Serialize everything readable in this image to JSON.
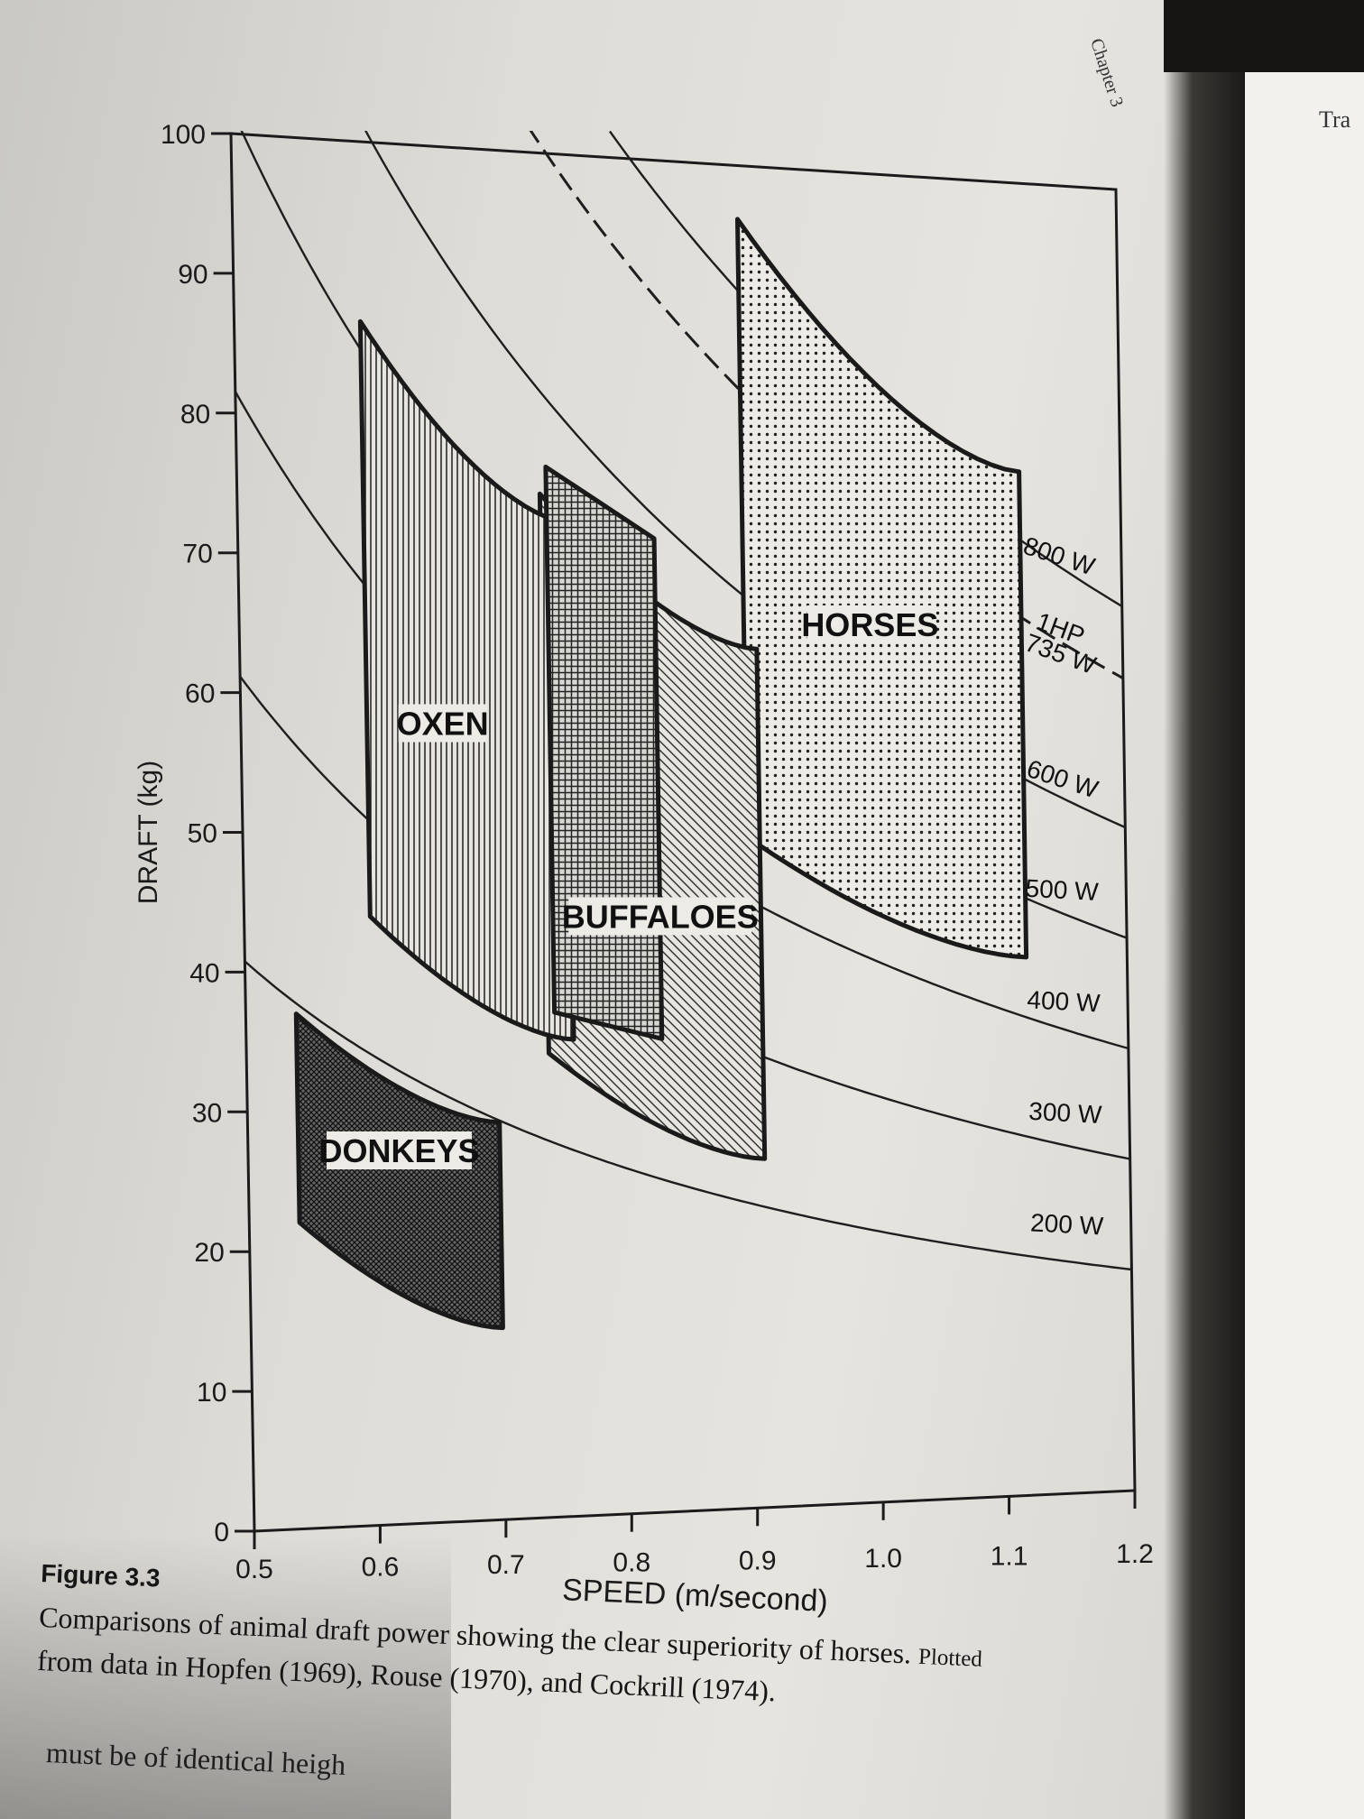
{
  "chapter_tab": "Chapter 3",
  "right_page_word": "Tra",
  "figure": {
    "label": "Figure 3.3",
    "caption_main": "Comparisons of animal draft power showing the clear superiority of horses.",
    "caption_end": "Plotted",
    "caption_line2": "from data in Hopfen (1969), Rouse (1970), and Cockrill (1974)."
  },
  "body_text_fragment": "must be of identical heigh",
  "chart_data": {
    "type": "area",
    "xlabel": "SPEED (m/second)",
    "ylabel": "DRAFT (kg)",
    "xlim": [
      0.5,
      1.2
    ],
    "ylim": [
      0,
      100
    ],
    "x_ticks": [
      "0.5",
      "0.6",
      "0.7",
      "0.8",
      "0.9",
      "1.0",
      "1.1",
      "1.2"
    ],
    "y_ticks": [
      "0",
      "10",
      "20",
      "30",
      "40",
      "50",
      "60",
      "70",
      "80",
      "90",
      "100"
    ],
    "power_curves": [
      {
        "label": "200 W",
        "watts": 200,
        "style": "solid"
      },
      {
        "label": "300 W",
        "watts": 300,
        "style": "solid"
      },
      {
        "label": "400 W",
        "watts": 400,
        "style": "solid"
      },
      {
        "label": "500 W",
        "watts": 500,
        "style": "solid"
      },
      {
        "label": "600 W",
        "watts": 600,
        "style": "solid"
      },
      {
        "label": "1HP",
        "label2": "735 W",
        "watts": 735,
        "style": "dashed"
      },
      {
        "label": "800 W",
        "watts": 800,
        "style": "solid"
      }
    ],
    "regions": [
      {
        "name": "DONKEYS",
        "x_range": [
          0.54,
          0.7
        ],
        "draft_low": [
          22,
          14
        ],
        "draft_high": [
          37,
          29
        ],
        "pattern": "crosshatch"
      },
      {
        "name": "OXEN",
        "x_range": [
          0.6,
          0.76
        ],
        "draft_low": [
          44,
          35
        ],
        "draft_high": [
          87,
          73
        ],
        "pattern": "vertical"
      },
      {
        "name": "BUFFALOES",
        "x_range": [
          0.74,
          0.91
        ],
        "draft_low": [
          34,
          26
        ],
        "draft_high": [
          75,
          64
        ],
        "pattern": "diagonal"
      },
      {
        "name": "HORSES",
        "x_range": [
          0.9,
          1.12
        ],
        "draft_low": [
          50,
          41
        ],
        "draft_high": [
          96,
          78
        ],
        "pattern": "dots"
      }
    ]
  }
}
